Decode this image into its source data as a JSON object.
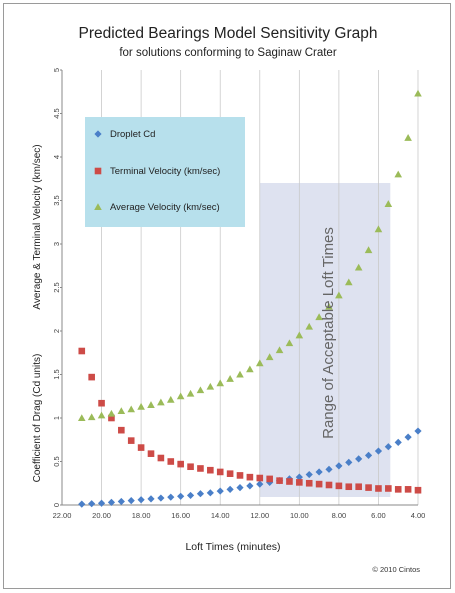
{
  "chart_data": {
    "type": "scatter",
    "title": "Predicted Bearings Model Sensitivity Graph",
    "subtitle": "for solutions conforming to Saginaw Crater",
    "xlabel": "Loft Times (minutes)",
    "ylabel_top": "Average & Terminal Velocity (km/sec)",
    "ylabel_bottom": "Coefficient of Drag (Cd units)",
    "xlim": [
      22,
      4
    ],
    "ylim": [
      0,
      5
    ],
    "x_ticks": [
      "22.00",
      "20.00",
      "18.00",
      "16.00",
      "14.00",
      "12.00",
      "10.00",
      "8.00",
      "6.00",
      "4.00"
    ],
    "y_ticks": [
      "0",
      "0.5",
      "1",
      "1.5",
      "2",
      "2.5",
      "3",
      "3.5",
      "4",
      "4.5",
      "5"
    ],
    "grid": "vertical",
    "legend_position": "top-left",
    "range_annotation": "Range of Acceptable Loft Times",
    "range_x": [
      12,
      5.4
    ],
    "copyright": "© 2010 Cintos",
    "colors": {
      "droplet": "#4a7fc8",
      "terminal": "#cd4b47",
      "average": "#9bbb59",
      "legend_bg": "#b7e0ec",
      "range_fill": "#d8dded"
    },
    "series": [
      {
        "name": "Droplet Cd",
        "marker": "diamond",
        "x": [
          21.0,
          20.5,
          20.0,
          19.5,
          19.0,
          18.5,
          18.0,
          17.5,
          17.0,
          16.5,
          16.0,
          15.5,
          15.0,
          14.5,
          14.0,
          13.5,
          13.0,
          12.5,
          12.0,
          11.5,
          11.0,
          10.5,
          10.0,
          9.5,
          9.0,
          8.5,
          8.0,
          7.5,
          7.0,
          6.5,
          6.0,
          5.5,
          5.0,
          4.5,
          4.0
        ],
        "y": [
          0.01,
          0.015,
          0.02,
          0.03,
          0.04,
          0.05,
          0.06,
          0.07,
          0.08,
          0.09,
          0.1,
          0.11,
          0.13,
          0.14,
          0.16,
          0.18,
          0.2,
          0.22,
          0.24,
          0.26,
          0.28,
          0.3,
          0.32,
          0.35,
          0.38,
          0.41,
          0.45,
          0.49,
          0.53,
          0.57,
          0.62,
          0.67,
          0.72,
          0.78,
          0.85
        ]
      },
      {
        "name": "Terminal Velocity (km/sec)",
        "marker": "square",
        "x": [
          21.0,
          20.5,
          20.0,
          19.5,
          19.0,
          18.5,
          18.0,
          17.5,
          17.0,
          16.5,
          16.0,
          15.5,
          15.0,
          14.5,
          14.0,
          13.5,
          13.0,
          12.5,
          12.0,
          11.5,
          11.0,
          10.5,
          10.0,
          9.5,
          9.0,
          8.5,
          8.0,
          7.5,
          7.0,
          6.5,
          6.0,
          5.5,
          5.0,
          4.5,
          4.0
        ],
        "y": [
          1.77,
          1.47,
          1.17,
          1.0,
          0.86,
          0.74,
          0.66,
          0.59,
          0.54,
          0.5,
          0.47,
          0.44,
          0.42,
          0.4,
          0.38,
          0.36,
          0.34,
          0.32,
          0.31,
          0.3,
          0.28,
          0.27,
          0.26,
          0.25,
          0.24,
          0.23,
          0.22,
          0.21,
          0.21,
          0.2,
          0.19,
          0.19,
          0.18,
          0.18,
          0.17
        ]
      },
      {
        "name": "Average Velocity (km/sec)",
        "marker": "triangle",
        "x": [
          21.0,
          20.5,
          20.0,
          19.5,
          19.0,
          18.5,
          18.0,
          17.5,
          17.0,
          16.5,
          16.0,
          15.5,
          15.0,
          14.5,
          14.0,
          13.5,
          13.0,
          12.5,
          12.0,
          11.5,
          11.0,
          10.5,
          10.0,
          9.5,
          9.0,
          8.5,
          8.0,
          7.5,
          7.0,
          6.5,
          6.0,
          5.5,
          5.0,
          4.5,
          4.0
        ],
        "y": [
          1.0,
          1.01,
          1.03,
          1.05,
          1.08,
          1.1,
          1.13,
          1.15,
          1.18,
          1.21,
          1.25,
          1.28,
          1.32,
          1.36,
          1.4,
          1.45,
          1.5,
          1.56,
          1.63,
          1.7,
          1.78,
          1.86,
          1.95,
          2.05,
          2.16,
          2.28,
          2.41,
          2.56,
          2.73,
          2.93,
          3.17,
          3.46,
          3.8,
          4.22,
          4.73
        ]
      }
    ]
  }
}
